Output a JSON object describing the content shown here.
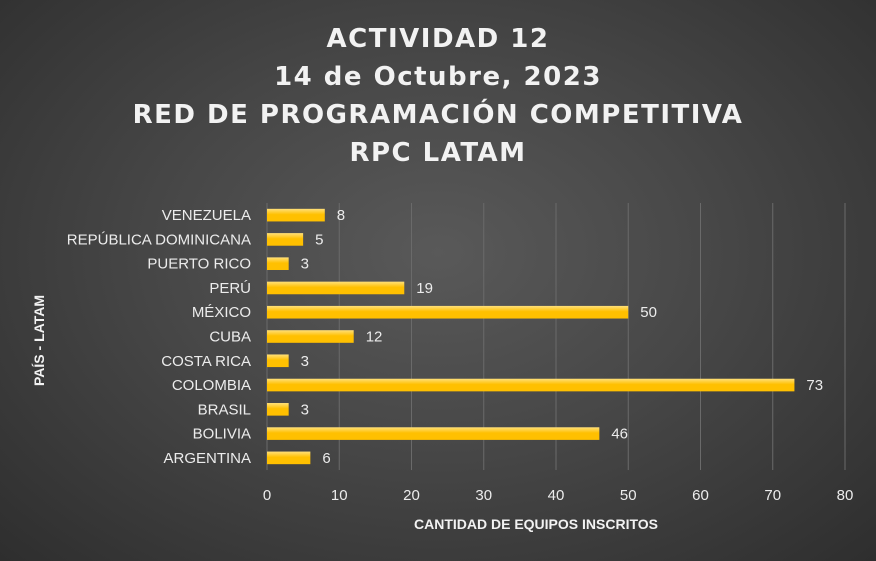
{
  "chart_data": {
    "type": "bar",
    "orientation": "horizontal",
    "title_lines": [
      "ACTIVIDAD 12",
      "14 de Octubre, 2023",
      "RED DE PROGRAMACIÓN COMPETITIVA",
      "RPC LATAM"
    ],
    "xlabel": "CANTIDAD DE EQUIPOS INSCRITOS",
    "ylabel": "PAÍS - LATAM",
    "categories": [
      "ARGENTINA",
      "BOLIVIA",
      "BRASIL",
      "COLOMBIA",
      "COSTA RICA",
      "CUBA",
      "MÉXICO",
      "PERÚ",
      "PUERTO RICO",
      "REPÚBLICA DOMINICANA",
      "VENEZUELA"
    ],
    "values": [
      6,
      46,
      3,
      73,
      3,
      12,
      50,
      19,
      3,
      5,
      8
    ],
    "xlim": [
      0,
      80
    ],
    "xticks": [
      0,
      10,
      20,
      30,
      40,
      50,
      60,
      70,
      80
    ],
    "grid": true,
    "legend": "none",
    "bar_color": "#FFC000",
    "bar_highlight": "#FFE07A",
    "data_labels": true
  }
}
